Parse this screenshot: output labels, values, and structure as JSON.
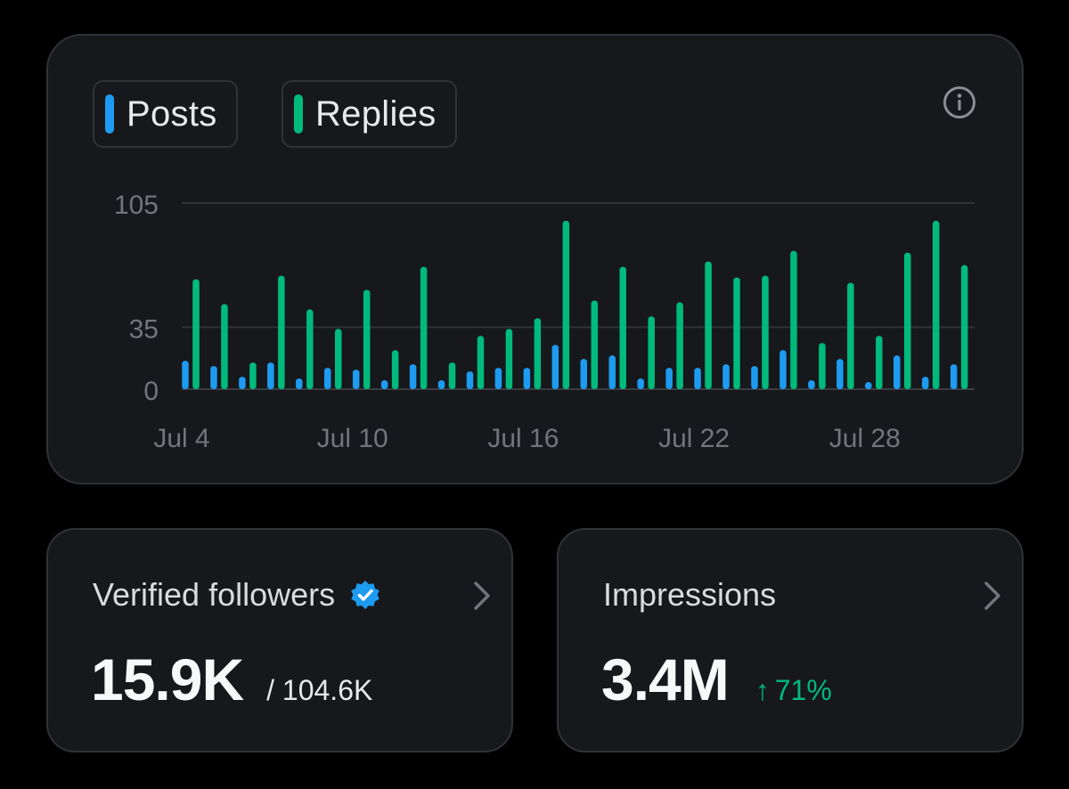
{
  "legend": {
    "posts_label": "Posts",
    "replies_label": "Replies"
  },
  "colors": {
    "posts": "#1d9bf0",
    "replies": "#00ba7c",
    "background": "#000000",
    "card": "#16181c",
    "border": "#2f3336",
    "grid": "#2f3336",
    "tick_text": "#71767b"
  },
  "icons": {
    "info": "info-circle-icon",
    "verified": "verified-badge-icon",
    "chevron": "chevron-right-icon"
  },
  "chart_data": {
    "type": "bar",
    "title": "",
    "xlabel": "",
    "ylabel": "",
    "ylim": [
      0,
      105
    ],
    "y_ticks": [
      0,
      35,
      105
    ],
    "grid": true,
    "legend_placement": "top-left",
    "categories": [
      "Jul 4",
      "Jul 5",
      "Jul 6",
      "Jul 7",
      "Jul 8",
      "Jul 9",
      "Jul 10",
      "Jul 11",
      "Jul 12",
      "Jul 13",
      "Jul 14",
      "Jul 15",
      "Jul 16",
      "Jul 17",
      "Jul 18",
      "Jul 19",
      "Jul 20",
      "Jul 21",
      "Jul 22",
      "Jul 23",
      "Jul 24",
      "Jul 25",
      "Jul 26",
      "Jul 27",
      "Jul 28",
      "Jul 29",
      "Jul 30",
      "Jul 31"
    ],
    "x_tick_labels": [
      "Jul 4",
      "Jul 10",
      "Jul 16",
      "Jul 22",
      "Jul 28"
    ],
    "series": [
      {
        "name": "Posts",
        "color": "#1d9bf0",
        "values": [
          16,
          13,
          7,
          15,
          6,
          12,
          11,
          5,
          14,
          5,
          10,
          12,
          12,
          25,
          17,
          19,
          6,
          12,
          12,
          14,
          13,
          22,
          5,
          17,
          4,
          19,
          7,
          14
        ]
      },
      {
        "name": "Replies",
        "color": "#00ba7c",
        "values": [
          62,
          48,
          15,
          64,
          45,
          34,
          56,
          22,
          69,
          15,
          30,
          34,
          40,
          95,
          50,
          69,
          41,
          49,
          72,
          63,
          64,
          78,
          26,
          60,
          30,
          77,
          95,
          70
        ]
      }
    ]
  },
  "followers_card": {
    "title": "Verified followers",
    "value": "15.9K",
    "total": "/ 104.6K"
  },
  "impressions_card": {
    "title": "Impressions",
    "value": "3.4M",
    "trend_arrow": "↑",
    "trend": "71%"
  }
}
